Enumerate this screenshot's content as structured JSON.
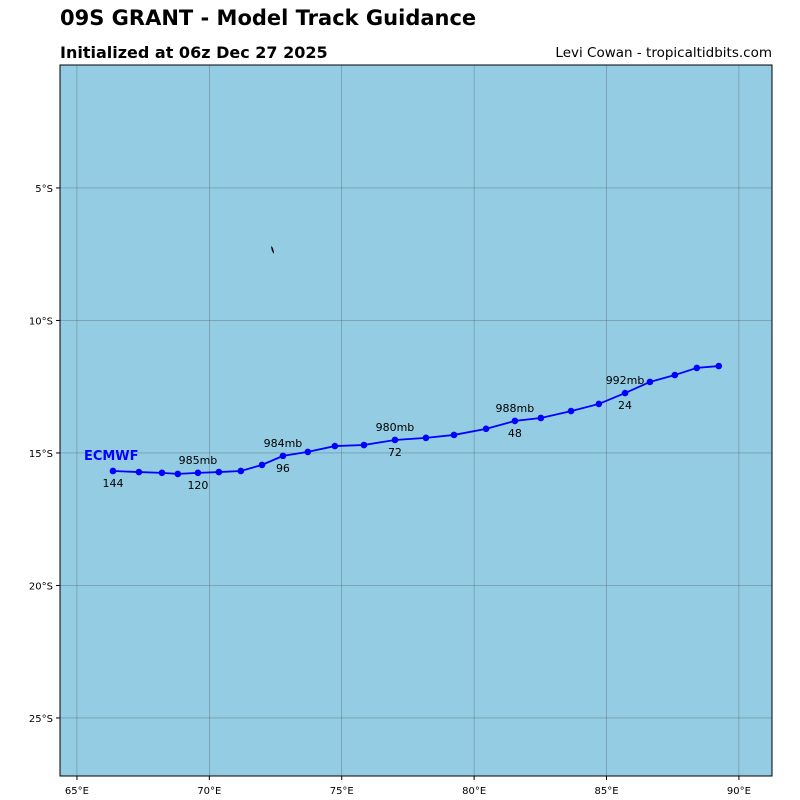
{
  "header": {
    "title": "09S GRANT - Model Track Guidance",
    "subtitle": "Initialized at 06z Dec 27 2025",
    "credit": "Levi Cowan - tropicaltidbits.com"
  },
  "colors": {
    "ocean": "#94cde3",
    "track": "#0000ff",
    "grid": "#5a6e78",
    "land": "#000000"
  },
  "chart_data": {
    "type": "map-track",
    "xlim": [
      64.36,
      91.25
    ],
    "ylim": [
      -27.19,
      -0.36
    ],
    "grid": true,
    "x_ticks": [
      {
        "value": 65,
        "label": "65°E"
      },
      {
        "value": 70,
        "label": "70°E"
      },
      {
        "value": 75,
        "label": "75°E"
      },
      {
        "value": 80,
        "label": "80°E"
      },
      {
        "value": 85,
        "label": "85°E"
      },
      {
        "value": 90,
        "label": "90°E"
      }
    ],
    "y_ticks": [
      {
        "value": -5,
        "label": "5°S"
      },
      {
        "value": -10,
        "label": "10°S"
      },
      {
        "value": -15,
        "label": "15°S"
      },
      {
        "value": -20,
        "label": "20°S"
      },
      {
        "value": -25,
        "label": "25°S"
      }
    ],
    "land": [
      {
        "lon": 72.4,
        "lat": -7.3
      }
    ],
    "series": [
      {
        "name": "ECMWF",
        "points": [
          [
            89.24,
            -11.72
          ],
          [
            88.41,
            -11.79
          ],
          [
            87.58,
            -12.06
          ],
          [
            86.64,
            -12.32
          ],
          [
            85.7,
            -12.74
          ],
          [
            84.71,
            -13.15
          ],
          [
            83.66,
            -13.42
          ],
          [
            82.52,
            -13.68
          ],
          [
            81.54,
            -13.79
          ],
          [
            80.45,
            -14.09
          ],
          [
            79.24,
            -14.32
          ],
          [
            78.18,
            -14.43
          ],
          [
            77.01,
            -14.51
          ],
          [
            75.84,
            -14.7
          ],
          [
            74.74,
            -14.74
          ],
          [
            73.72,
            -14.96
          ],
          [
            72.78,
            -15.11
          ],
          [
            71.99,
            -15.45
          ],
          [
            71.19,
            -15.68
          ],
          [
            70.36,
            -15.72
          ],
          [
            69.57,
            -15.75
          ],
          [
            68.81,
            -15.79
          ],
          [
            68.21,
            -15.75
          ],
          [
            67.34,
            -15.72
          ],
          [
            66.36,
            -15.68
          ]
        ],
        "hour_labels": [
          {
            "index": 4,
            "label": "24"
          },
          {
            "index": 8,
            "label": "48"
          },
          {
            "index": 12,
            "label": "72"
          },
          {
            "index": 16,
            "label": "96"
          },
          {
            "index": 20,
            "label": "120"
          },
          {
            "index": 24,
            "label": "144"
          }
        ],
        "pressure_labels": [
          {
            "index": 4,
            "label": "992mb"
          },
          {
            "index": 8,
            "label": "988mb"
          },
          {
            "index": 12,
            "label": "980mb"
          },
          {
            "index": 16,
            "label": "984mb"
          },
          {
            "index": 20,
            "label": "985mb"
          }
        ]
      }
    ]
  }
}
